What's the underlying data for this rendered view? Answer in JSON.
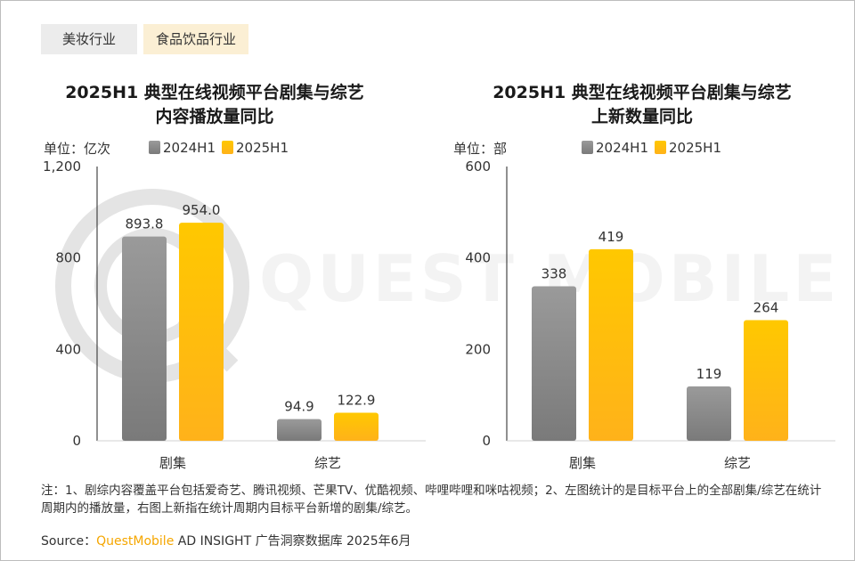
{
  "tabs": [
    "美妆行业",
    "食品饮品行业"
  ],
  "watermark": "QUEST MOBILE",
  "charts": [
    {
      "title_line1": "2025H1 典型在线视频平台剧集与综艺",
      "title_line2": "内容播放量同比",
      "unit": "单位：亿次"
    },
    {
      "title_line1": "2025H1 典型在线视频平台剧集与综艺",
      "title_line2": "上新数量同比",
      "unit": "单位：部"
    }
  ],
  "chart_data": [
    {
      "type": "bar",
      "title": "2025H1 典型在线视频平台剧集与综艺内容播放量同比",
      "unit": "单位：亿次",
      "categories": [
        "剧集",
        "综艺"
      ],
      "series": [
        {
          "name": "2024H1",
          "values": [
            893.8,
            94.9
          ],
          "labels": [
            "893.8",
            "94.9"
          ],
          "color": "#8a8a8a"
        },
        {
          "name": "2025H1",
          "values": [
            954.0,
            122.9
          ],
          "labels": [
            "954.0",
            "122.9"
          ],
          "color": "#ffc000"
        }
      ],
      "ylim": [
        0,
        1200
      ],
      "yticks": [
        0,
        400,
        800,
        1200
      ],
      "yticklabels": [
        "0",
        "400",
        "800",
        "1,200"
      ],
      "legend": "top",
      "grid": false
    },
    {
      "type": "bar",
      "title": "2025H1 典型在线视频平台剧集与综艺上新数量同比",
      "unit": "单位：部",
      "categories": [
        "剧集",
        "综艺"
      ],
      "series": [
        {
          "name": "2024H1",
          "values": [
            338,
            119
          ],
          "labels": [
            "338",
            "119"
          ],
          "color": "#8a8a8a"
        },
        {
          "name": "2025H1",
          "values": [
            419,
            264
          ],
          "labels": [
            "419",
            "264"
          ],
          "color": "#ffc000"
        }
      ],
      "ylim": [
        0,
        600
      ],
      "yticks": [
        0,
        200,
        400,
        600
      ],
      "yticklabels": [
        "0",
        "200",
        "400",
        "600"
      ],
      "legend": "top",
      "grid": false
    }
  ],
  "footer": {
    "note": "注：1、剧综内容覆盖平台包括爱奇艺、腾讯视频、芒果TV、优酷视频、哔哩哔哩和咪咕视频；2、左图统计的是目标平台上的全部剧集/综艺在统计周期内的播放量，右图上新指在统计周期内目标平台新增的剧集/综艺。",
    "source_prefix": "Source：",
    "source_brand": "QuestMobile",
    "source_rest": " AD INSIGHT 广告洞察数据库 2025年6月"
  }
}
